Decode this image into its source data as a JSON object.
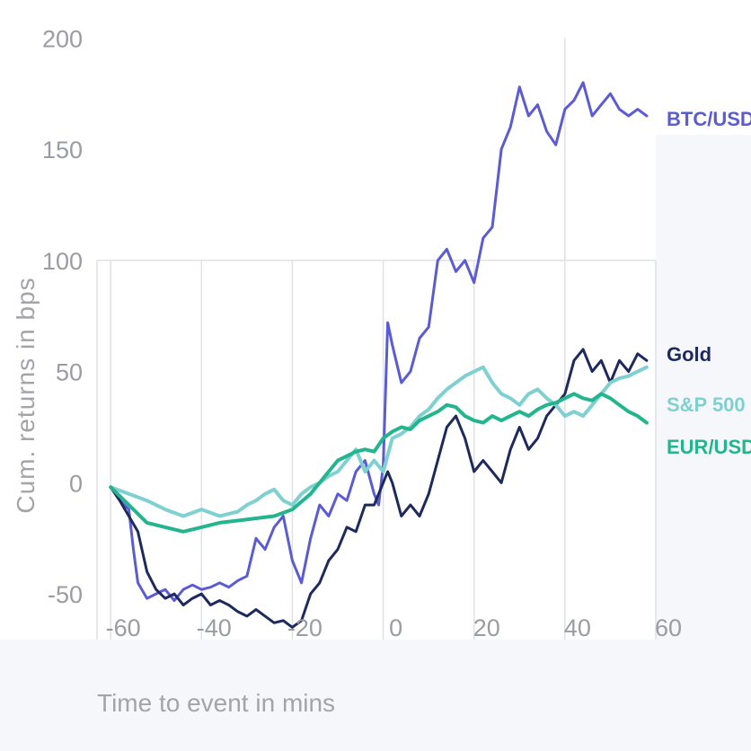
{
  "chart_data": {
    "type": "line",
    "title": "",
    "xlabel": "Time to event in mins",
    "ylabel": "Cum. returns in bps",
    "xlim": [
      -63,
      60
    ],
    "ylim": [
      -75,
      205
    ],
    "x_ticks": [
      "-60",
      "-40",
      "-20",
      "0",
      "20",
      "40",
      "60"
    ],
    "y_ticks": [
      "200",
      "150",
      "100",
      "50",
      "0",
      "-50"
    ],
    "grid": true,
    "legend": "right-end labels",
    "series": [
      {
        "name": "BTC/USD",
        "color": "#5b5bd6",
        "x": [
          -60,
          -58,
          -56,
          -55,
          -54,
          -52,
          -50,
          -48,
          -46,
          -44,
          -42,
          -40,
          -38,
          -36,
          -34,
          -32,
          -30,
          -28,
          -26,
          -24,
          -22,
          -20,
          -18,
          -16,
          -14,
          -12,
          -10,
          -8,
          -6,
          -4,
          -2,
          -1,
          0,
          1,
          2,
          4,
          6,
          8,
          10,
          12,
          14,
          16,
          18,
          20,
          22,
          24,
          26,
          28,
          30,
          32,
          34,
          36,
          38,
          40,
          42,
          44,
          46,
          48,
          50,
          52,
          54,
          56,
          58
        ],
        "y": [
          -2,
          -8,
          -12,
          -30,
          -45,
          -52,
          -50,
          -48,
          -53,
          -48,
          -46,
          -48,
          -47,
          -45,
          -47,
          -44,
          -42,
          -25,
          -30,
          -20,
          -15,
          -35,
          -45,
          -25,
          -10,
          -15,
          -5,
          -8,
          5,
          10,
          -5,
          -10,
          8,
          72,
          62,
          45,
          50,
          65,
          70,
          100,
          105,
          95,
          100,
          90,
          110,
          115,
          150,
          160,
          178,
          165,
          170,
          158,
          152,
          168,
          172,
          180,
          165,
          170,
          175,
          168,
          165,
          168,
          165
        ],
        "stroke_width": 3
      },
      {
        "name": "Gold",
        "color": "#1e2a5e",
        "x": [
          -60,
          -58,
          -56,
          -54,
          -52,
          -50,
          -48,
          -46,
          -44,
          -42,
          -40,
          -38,
          -36,
          -34,
          -32,
          -30,
          -28,
          -26,
          -24,
          -22,
          -20,
          -18,
          -16,
          -14,
          -12,
          -10,
          -8,
          -6,
          -4,
          -2,
          0,
          1,
          2,
          4,
          6,
          8,
          10,
          12,
          14,
          16,
          18,
          20,
          22,
          24,
          26,
          28,
          30,
          32,
          34,
          36,
          38,
          40,
          42,
          44,
          46,
          48,
          50,
          52,
          54,
          56,
          58
        ],
        "y": [
          -2,
          -8,
          -15,
          -22,
          -40,
          -48,
          -52,
          -50,
          -55,
          -52,
          -50,
          -55,
          -53,
          -55,
          -58,
          -60,
          -57,
          -60,
          -63,
          -62,
          -65,
          -62,
          -50,
          -45,
          -35,
          -30,
          -20,
          -22,
          -10,
          -10,
          0,
          5,
          0,
          -15,
          -10,
          -15,
          -5,
          10,
          25,
          30,
          20,
          5,
          10,
          5,
          0,
          15,
          25,
          15,
          20,
          30,
          35,
          40,
          55,
          60,
          50,
          55,
          45,
          55,
          50,
          58,
          55
        ],
        "stroke_width": 3
      },
      {
        "name": "S&P 500",
        "color": "#7fd0d1",
        "x": [
          -60,
          -56,
          -52,
          -48,
          -44,
          -40,
          -36,
          -32,
          -30,
          -28,
          -26,
          -24,
          -22,
          -20,
          -18,
          -16,
          -14,
          -12,
          -10,
          -8,
          -6,
          -4,
          -2,
          0,
          2,
          4,
          6,
          8,
          10,
          12,
          14,
          16,
          18,
          20,
          22,
          24,
          26,
          28,
          30,
          32,
          34,
          36,
          38,
          40,
          42,
          44,
          46,
          48,
          50,
          52,
          54,
          56,
          58
        ],
        "y": [
          -2,
          -5,
          -8,
          -12,
          -15,
          -12,
          -15,
          -13,
          -10,
          -8,
          -5,
          -3,
          -8,
          -10,
          -5,
          -2,
          0,
          3,
          5,
          10,
          15,
          5,
          10,
          5,
          20,
          22,
          25,
          30,
          33,
          38,
          42,
          45,
          48,
          50,
          52,
          45,
          40,
          38,
          35,
          40,
          42,
          38,
          35,
          30,
          32,
          30,
          35,
          40,
          45,
          47,
          48,
          50,
          52
        ],
        "stroke_width": 4
      },
      {
        "name": "EUR/USD",
        "color": "#23b58d",
        "x": [
          -60,
          -56,
          -52,
          -48,
          -44,
          -40,
          -36,
          -32,
          -28,
          -24,
          -20,
          -16,
          -12,
          -10,
          -8,
          -6,
          -4,
          -2,
          0,
          2,
          4,
          6,
          8,
          10,
          12,
          14,
          16,
          18,
          20,
          22,
          24,
          26,
          28,
          30,
          32,
          34,
          36,
          38,
          40,
          42,
          44,
          46,
          48,
          50,
          52,
          54,
          56,
          58
        ],
        "y": [
          -2,
          -10,
          -18,
          -20,
          -22,
          -20,
          -18,
          -17,
          -16,
          -15,
          -12,
          -5,
          5,
          10,
          12,
          14,
          15,
          14,
          20,
          23,
          25,
          24,
          28,
          30,
          32,
          35,
          34,
          30,
          28,
          27,
          30,
          28,
          30,
          32,
          30,
          33,
          35,
          36,
          38,
          40,
          38,
          37,
          40,
          38,
          35,
          32,
          30,
          27
        ],
        "stroke_width": 4
      }
    ]
  }
}
